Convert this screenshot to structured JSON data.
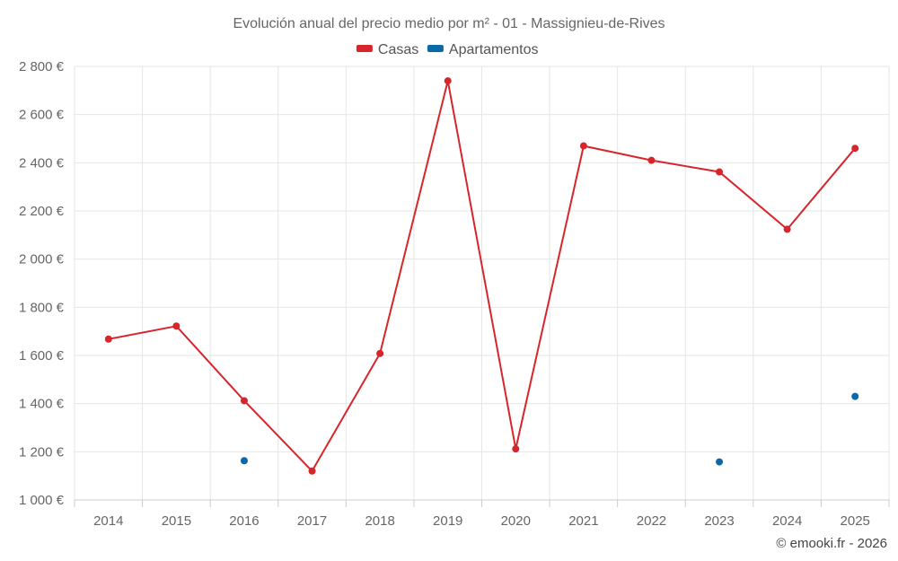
{
  "chart_data": {
    "type": "line",
    "title": "Evolución anual del precio medio por m² - 01 - Massignieu-de-Rives",
    "categories": [
      "2014",
      "2015",
      "2016",
      "2017",
      "2018",
      "2019",
      "2020",
      "2021",
      "2022",
      "2023",
      "2024",
      "2025"
    ],
    "y_tick_labels": [
      "1 000 €",
      "1 200 €",
      "1 400 €",
      "1 600 €",
      "1 800 €",
      "2 000 €",
      "2 200 €",
      "2 400 €",
      "2 600 €",
      "2 800 €"
    ],
    "y_ticks": [
      1000,
      1200,
      1400,
      1600,
      1800,
      2000,
      2200,
      2400,
      2600,
      2800
    ],
    "ylim": [
      1000,
      2800
    ],
    "grid": true,
    "legend_position": "top-center",
    "series": [
      {
        "name": "Casas",
        "color": "#d7262b",
        "mode": "line+markers",
        "values": [
          1668,
          1722,
          1412,
          1120,
          1608,
          2740,
          1212,
          2470,
          2410,
          2362,
          2124,
          2460
        ]
      },
      {
        "name": "Apartamentos",
        "color": "#0a69a6",
        "mode": "markers",
        "values": [
          null,
          null,
          1163,
          null,
          null,
          null,
          null,
          null,
          null,
          1158,
          null,
          1430
        ]
      }
    ],
    "credit": "© emooki.fr - 2026"
  }
}
